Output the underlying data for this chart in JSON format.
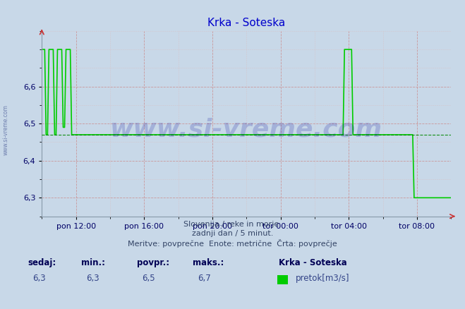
{
  "title": "Krka - Soteska",
  "title_color": "#0000cc",
  "bg_color": "#c8d8e8",
  "plot_bg_color": "#c8d8e8",
  "line_color": "#00cc00",
  "line_width": 1.2,
  "avg_line_color": "#008800",
  "avg_line_value": 6.47,
  "ylim": [
    6.25,
    6.75
  ],
  "yticks": [
    6.3,
    6.4,
    6.5,
    6.6
  ],
  "grid_color_major": "#cc8888",
  "grid_color_minor": "#ddbbbb",
  "text_info_line1": "Slovenija / reke in morje.",
  "text_info_line2": "zadnji dan / 5 minut.",
  "text_info_line3": "Meritve: povprečne  Enote: metrične  Črta: povprečje",
  "footer_labels": [
    "sedaj:",
    "min.:",
    "povpr.:",
    "maks.:"
  ],
  "footer_values": [
    "6,3",
    "6,3",
    "6,5",
    "6,7"
  ],
  "legend_title": "Krka - Soteska",
  "legend_label": "pretok[m3/s]",
  "legend_color": "#00cc00",
  "xtick_labels": [
    "pon 12:00",
    "pon 16:00",
    "pon 20:00",
    "tor 00:00",
    "tor 04:00",
    "tor 08:00"
  ],
  "watermark": "www.si-vreme.com",
  "watermark_color": "#000099",
  "watermark_alpha": 0.18,
  "side_label": "www.si-vreme.com",
  "n_points": 289
}
